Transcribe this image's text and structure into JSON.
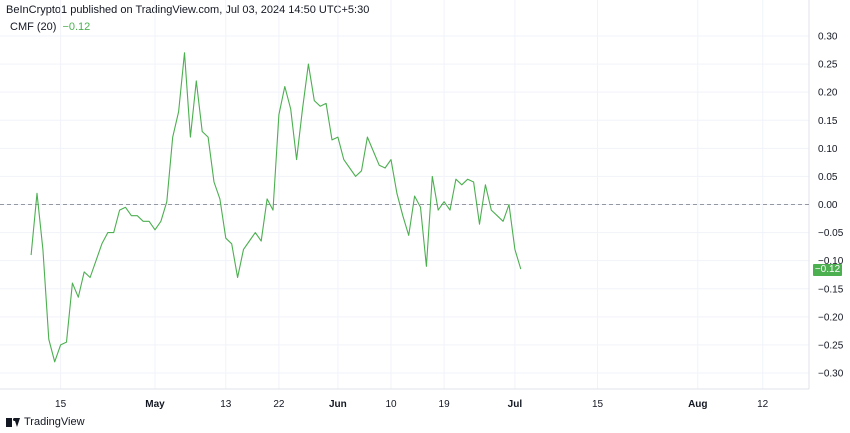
{
  "header": {
    "published": "BeInCrypto1 published on TradingView.com, Jul 03, 2024 14:50 UTC+5:30"
  },
  "indicator": {
    "name": "CMF (20)",
    "value": "−0.12",
    "color": "#4caf50"
  },
  "price_badge": "−0.12",
  "footer": {
    "brand": "TradingView"
  },
  "chart_data": {
    "type": "line",
    "ylim": [
      -0.33,
      0.33
    ],
    "y_ticks": [
      0.3,
      0.25,
      0.2,
      0.15,
      0.1,
      0.05,
      0.0,
      -0.05,
      -0.1,
      -0.15,
      -0.2,
      -0.25,
      -0.3
    ],
    "y_tick_labels": [
      "0.30",
      "0.25",
      "0.20",
      "0.15",
      "0.10",
      "0.05",
      "0.00",
      "−0.05",
      "−0.10",
      "−0.15",
      "−0.20",
      "−0.25",
      "−0.30"
    ],
    "x_ticks": [
      {
        "label": "15",
        "day": 14,
        "bold": false
      },
      {
        "label": "May",
        "day": 30,
        "bold": true
      },
      {
        "label": "13",
        "day": 42,
        "bold": false
      },
      {
        "label": "22",
        "day": 51,
        "bold": false
      },
      {
        "label": "Jun",
        "day": 61,
        "bold": true
      },
      {
        "label": "10",
        "day": 70,
        "bold": false
      },
      {
        "label": "19",
        "day": 79,
        "bold": false
      },
      {
        "label": "Jul",
        "day": 91,
        "bold": true
      },
      {
        "label": "15",
        "day": 105,
        "bold": false
      },
      {
        "label": "Aug",
        "day": 122,
        "bold": true
      },
      {
        "label": "12",
        "day": 133,
        "bold": false
      }
    ],
    "zero_line": 0.0,
    "series": [
      {
        "color": "#4caf50",
        "x": [
          9,
          10,
          11,
          12,
          13,
          14,
          15,
          16,
          17,
          18,
          19,
          20,
          21,
          22,
          23,
          24,
          25,
          26,
          27,
          28,
          29,
          30,
          31,
          32,
          33,
          34,
          35,
          36,
          37,
          38,
          39,
          40,
          41,
          42,
          43,
          44,
          45,
          46,
          47,
          48,
          49,
          50,
          51,
          52,
          53,
          54,
          55,
          56,
          57,
          58,
          59,
          60,
          61,
          62,
          63,
          64,
          65,
          66,
          67,
          68,
          69,
          70,
          71,
          72,
          73,
          74,
          75,
          76,
          77,
          78,
          79,
          80,
          81,
          82,
          83,
          84,
          85,
          86,
          87,
          88,
          89,
          90,
          91,
          92
        ],
        "y": [
          -0.09,
          0.02,
          -0.08,
          -0.24,
          -0.28,
          -0.25,
          -0.245,
          -0.14,
          -0.165,
          -0.12,
          -0.13,
          -0.1,
          -0.07,
          -0.05,
          -0.05,
          -0.01,
          -0.005,
          -0.02,
          -0.02,
          -0.03,
          -0.03,
          -0.045,
          -0.03,
          0.005,
          0.12,
          0.165,
          0.27,
          0.12,
          0.22,
          0.13,
          0.12,
          0.04,
          0.01,
          -0.06,
          -0.07,
          -0.13,
          -0.08,
          -0.065,
          -0.05,
          -0.065,
          0.01,
          -0.01,
          0.16,
          0.21,
          0.17,
          0.08,
          0.17,
          0.25,
          0.185,
          0.175,
          0.18,
          0.115,
          0.12,
          0.08,
          0.065,
          0.05,
          0.06,
          0.12,
          0.095,
          0.07,
          0.065,
          0.08,
          0.02,
          -0.02,
          -0.055,
          0.015,
          -0.005,
          -0.11,
          0.05,
          -0.01,
          0.005,
          -0.01,
          0.045,
          0.035,
          0.045,
          0.04,
          -0.035,
          0.035,
          -0.01,
          -0.02,
          -0.03,
          0.0,
          -0.08,
          -0.115
        ]
      }
    ]
  }
}
